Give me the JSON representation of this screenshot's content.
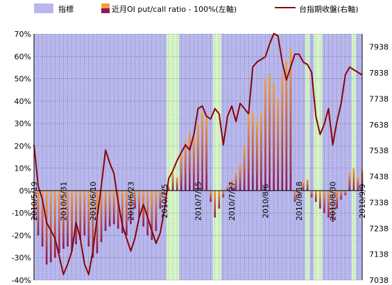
{
  "chart_data": {
    "type": "bar",
    "colors": {
      "plot_bg": "#d6f5c9",
      "shade": "#b8b8ee",
      "bar_top": "#f2a03a",
      "bar_bottom": "#8b1a5a",
      "line": "#8b0000",
      "grid": "#000000"
    },
    "legend": [
      {
        "label": "指標",
        "kind": "shade"
      },
      {
        "label": "近月OI put/call ratio - 100%(左軸)",
        "kind": "bar"
      },
      {
        "label": "台指期收盤(右軸)",
        "kind": "line"
      }
    ],
    "y_left": {
      "range": [
        -40,
        70
      ],
      "ticks": [
        70,
        60,
        50,
        40,
        30,
        20,
        10,
        0,
        -10,
        -20,
        -30,
        -40
      ],
      "tick_labels": [
        "70%",
        "60%",
        "50%",
        "40%",
        "30%",
        "20%",
        "10%",
        "0%",
        "-10%",
        "-20%",
        "-30%",
        "-40%"
      ]
    },
    "y_right": {
      "range": [
        7038,
        7988
      ],
      "ticks": [
        7938,
        7838,
        7738,
        7638,
        7538,
        7438,
        7338,
        7238,
        7138,
        7038
      ],
      "tick_labels": [
        "7938",
        "7838",
        "7738",
        "7638",
        "7538",
        "7438",
        "7338",
        "7238",
        "7138",
        "7038"
      ]
    },
    "x_tick_labels": [
      {
        "i": 0,
        "label": "2010/5/19"
      },
      {
        "i": 7,
        "label": "2010/5/31"
      },
      {
        "i": 14,
        "label": "2010/6/10"
      },
      {
        "i": 23,
        "label": "2010/6/23"
      },
      {
        "i": 31,
        "label": "2010/7/5"
      },
      {
        "i": 39,
        "label": "2010/7/15"
      },
      {
        "i": 47,
        "label": "2010/7/27"
      },
      {
        "i": 55,
        "label": "2010/8/6"
      },
      {
        "i": 63,
        "label": "2010/8/18"
      },
      {
        "i": 71,
        "label": "2010/8/30"
      },
      {
        "i": 78,
        "label": "2010/9/9"
      }
    ],
    "n_points": 79,
    "shaded_ranges": [
      [
        0,
        31
      ],
      [
        35,
        42
      ],
      [
        45,
        60
      ],
      [
        61,
        64
      ],
      [
        66,
        66
      ],
      [
        69,
        75
      ],
      [
        77,
        78
      ]
    ],
    "series": [
      {
        "name": "近月OI put/call ratio - 100%(左軸)",
        "axis": "left",
        "values": [
          -13,
          -20,
          -25,
          -33,
          -32,
          -30,
          -28,
          -26,
          -25,
          -27,
          -24,
          -22,
          -20,
          -25,
          -30,
          -28,
          -23,
          -18,
          -16,
          -15,
          -17,
          -19,
          -20,
          -15,
          -8,
          -12,
          -16,
          -20,
          -22,
          -18,
          -8,
          -2,
          2,
          8,
          6,
          16,
          22,
          26,
          24,
          30,
          35,
          33,
          -5,
          -12,
          -8,
          -3,
          2,
          5,
          8,
          12,
          20,
          34,
          35,
          31,
          35,
          50,
          52,
          48,
          41,
          52,
          58,
          64,
          -5,
          -2,
          4,
          5,
          -3,
          -5,
          -8,
          -10,
          -12,
          -14,
          -8,
          -4,
          -2,
          8,
          10,
          6,
          9
        ]
      },
      {
        "name": "台指期收盤(右軸)",
        "axis": "right",
        "values": [
          7560,
          7400,
          7350,
          7260,
          7230,
          7200,
          7130,
          7060,
          7100,
          7150,
          7260,
          7200,
          7100,
          7060,
          7150,
          7280,
          7400,
          7540,
          7490,
          7450,
          7340,
          7250,
          7200,
          7150,
          7200,
          7280,
          7330,
          7280,
          7230,
          7180,
          7220,
          7310,
          7430,
          7460,
          7500,
          7530,
          7560,
          7540,
          7600,
          7700,
          7710,
          7670,
          7660,
          7700,
          7680,
          7560,
          7670,
          7710,
          7650,
          7720,
          7700,
          7680,
          7860,
          7880,
          7890,
          7900,
          7950,
          7990,
          7980,
          7880,
          7810,
          7860,
          7910,
          7910,
          7880,
          7870,
          7840,
          7670,
          7600,
          7640,
          7700,
          7560,
          7650,
          7720,
          7830,
          7860,
          7850,
          7840,
          7830
        ]
      }
    ]
  }
}
